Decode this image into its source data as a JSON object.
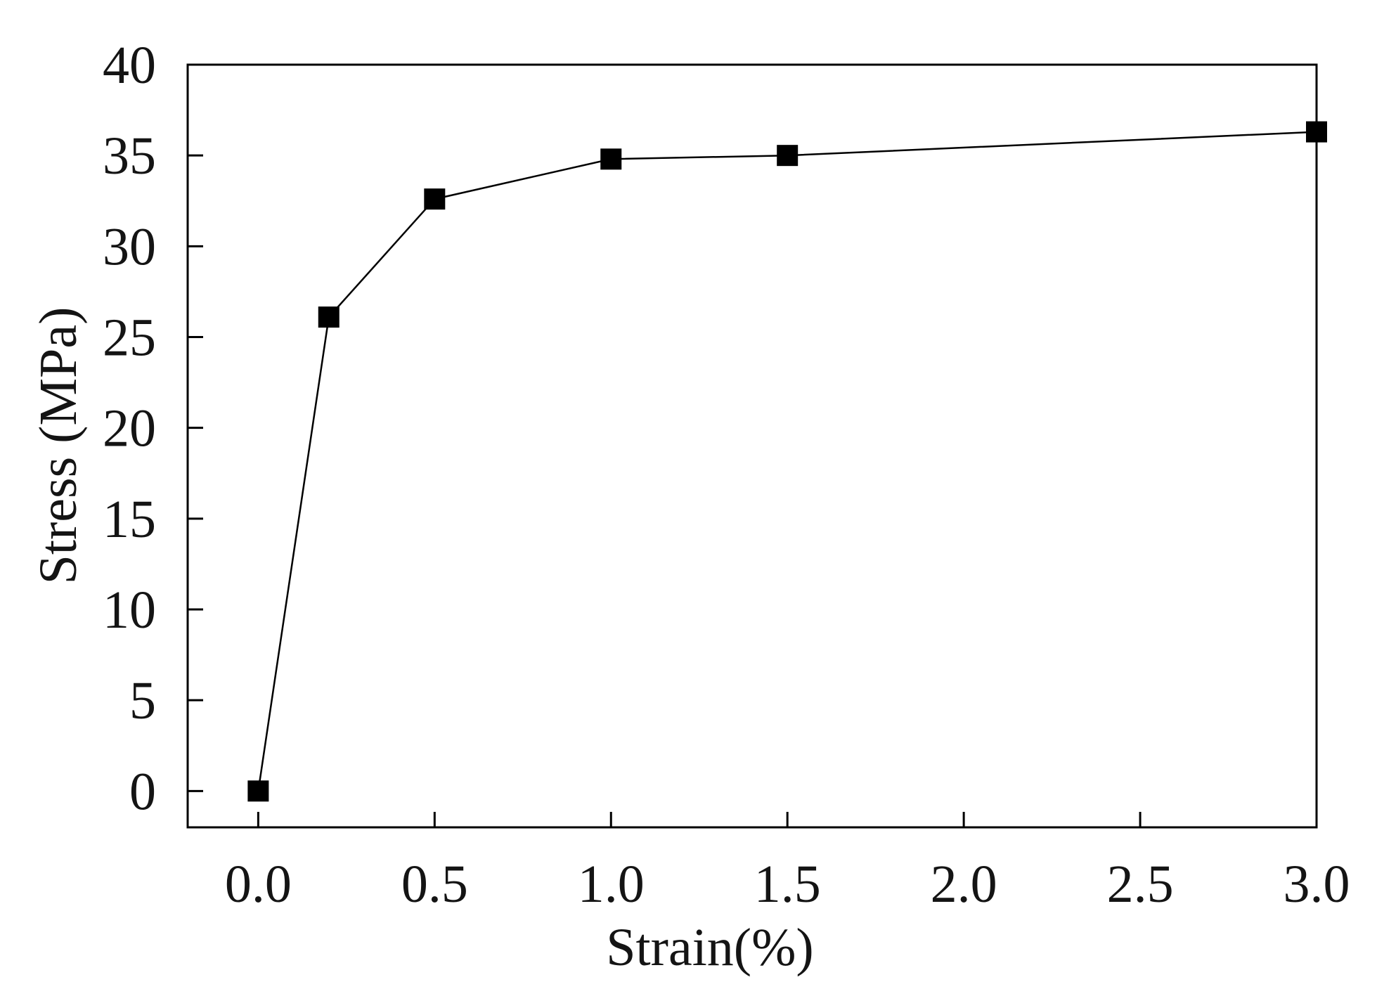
{
  "chart_data": {
    "type": "line",
    "title": "",
    "xlabel": "Strain(%)",
    "ylabel": "Stress (MPa)",
    "xlim": [
      -0.2,
      3.0
    ],
    "ylim": [
      -2,
      40
    ],
    "xticks": [
      0.0,
      0.5,
      1.0,
      1.5,
      2.0,
      2.5,
      3.0
    ],
    "xtick_labels": [
      "0.0",
      "0.5",
      "1.0",
      "1.5",
      "2.0",
      "2.5",
      "3.0"
    ],
    "yticks": [
      0,
      5,
      10,
      15,
      20,
      25,
      30,
      35,
      40
    ],
    "ytick_labels": [
      "0",
      "5",
      "10",
      "15",
      "20",
      "25",
      "30",
      "35",
      "40"
    ],
    "grid": false,
    "legend": "none",
    "series": [
      {
        "marker": "filled-square",
        "color": "#000000",
        "x": [
          0.0,
          0.2,
          0.5,
          1.0,
          1.5,
          3.0
        ],
        "y": [
          0.0,
          26.1,
          32.6,
          34.8,
          35.0,
          36.3
        ]
      }
    ]
  }
}
